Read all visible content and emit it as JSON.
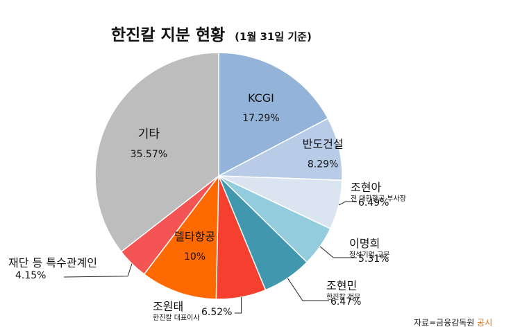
{
  "chart_data": {
    "type": "pie",
    "title": "한진칼 지분 현황",
    "subtitle": "(1월 31일 기준)",
    "slices": [
      {
        "name": "KCGI",
        "note": "",
        "label": "17.29%",
        "value": 17.29,
        "color": "#94b3d9"
      },
      {
        "name": "반도건설",
        "note": "",
        "label": "8.29%",
        "value": 8.29,
        "color": "#b8cce8"
      },
      {
        "name": "조현아",
        "note": "전 대한항공 부사장",
        "label": "6.49%",
        "value": 6.49,
        "color": "#dbe5f2"
      },
      {
        "name": "이명희",
        "note": "정석기업 고문",
        "label": "5.31%",
        "value": 5.31,
        "color": "#93cddd"
      },
      {
        "name": "조현민",
        "note": "한진칼 전무",
        "label": "6.47%",
        "value": 6.47,
        "color": "#4197ae"
      },
      {
        "name": "조원태",
        "note": "한진칼 대표이사",
        "label": "6.52%",
        "value": 6.52,
        "color": "#f5402f"
      },
      {
        "name": "델타항공",
        "note": "",
        "label": "10%",
        "value": 10,
        "color": "#ff6a00"
      },
      {
        "name": "재단 등 특수관계인",
        "note": "",
        "label": "4.15%",
        "value": 4.15,
        "color": "#f55454"
      },
      {
        "name": "기타",
        "note": "",
        "label": "35.57%",
        "value": 35.57,
        "color": "#bdbdbd"
      }
    ]
  },
  "source": {
    "prefix": "자료=금융감독원 ",
    "highlight": "공시",
    "highlight_color": "#e07020"
  }
}
